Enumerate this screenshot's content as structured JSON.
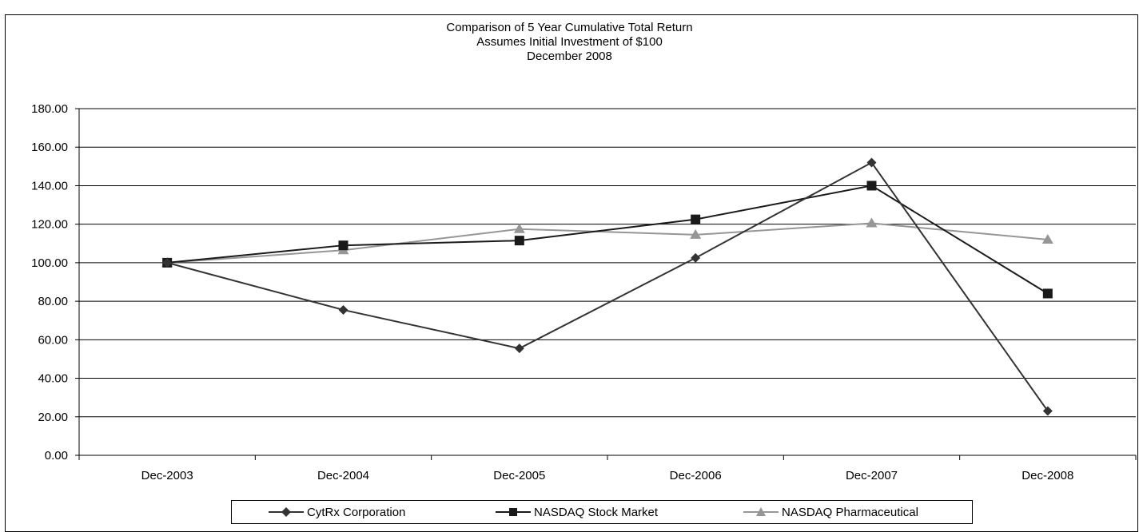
{
  "chart_data": {
    "type": "line",
    "title_lines": [
      "Comparison of 5 Year Cumulative Total Return",
      "Assumes Initial Investment of $100",
      "December 2008"
    ],
    "categories": [
      "Dec-2003",
      "Dec-2004",
      "Dec-2005",
      "Dec-2006",
      "Dec-2007",
      "Dec-2008"
    ],
    "y_ticks": [
      "0.00",
      "20.00",
      "40.00",
      "60.00",
      "80.00",
      "100.00",
      "120.00",
      "140.00",
      "160.00",
      "180.00"
    ],
    "ylim": [
      0,
      180
    ],
    "grid": true,
    "legend_position": "bottom",
    "series": [
      {
        "name": "CytRx Corporation",
        "marker": "diamond",
        "color": "#333333",
        "values": [
          100.0,
          75.5,
          55.5,
          102.5,
          152.0,
          23.0
        ]
      },
      {
        "name": "NASDAQ Stock Market",
        "marker": "square",
        "color": "#1a1a1a",
        "values": [
          100.0,
          109.0,
          111.5,
          122.5,
          140.0,
          84.0
        ]
      },
      {
        "name": "NASDAQ Pharmaceutical",
        "marker": "triangle",
        "color": "#969696",
        "values": [
          100.0,
          106.5,
          117.5,
          114.5,
          120.5,
          112.0
        ]
      }
    ]
  }
}
